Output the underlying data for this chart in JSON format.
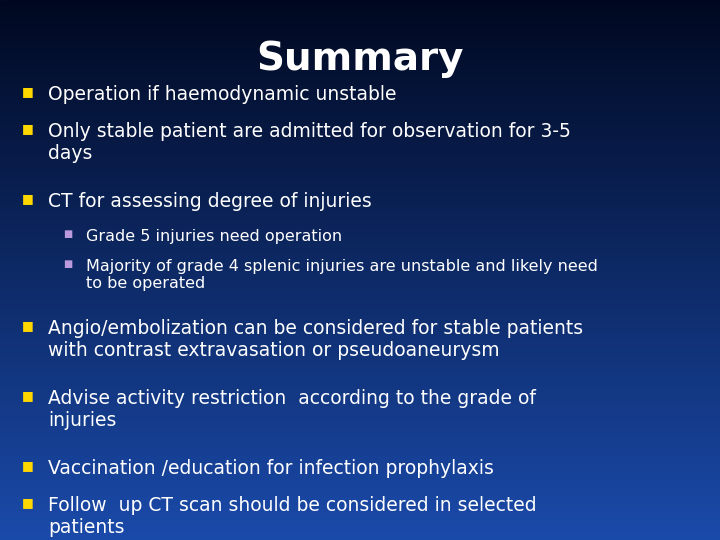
{
  "title": "Summary",
  "title_color": "#FFFFFF",
  "title_fontsize": 28,
  "background_top": "#000820",
  "background_bottom": "#1a4aaa",
  "bullet_color": "#FFD700",
  "sub_bullet_color": "#BB99DD",
  "text_color": "#FFFFFF",
  "main_fontsize": 13.5,
  "sub_fontsize": 11.5,
  "bullets": [
    "Operation if haemodynamic unstable",
    "Only stable patient are admitted for observation for 3-5\ndays",
    "CT for assessing degree of injuries"
  ],
  "sub_bullets": [
    "Grade 5 injuries need operation",
    "Majority of grade 4 splenic injuries are unstable and likely need\nto be operated"
  ],
  "extra_bullets": [
    "Angio/embolization can be considered for stable patients\nwith contrast extravasation or pseudoaneurysm",
    "Advise activity restriction  according to the grade of\ninjuries",
    "Vaccination /education for infection prophylaxis",
    "Follow  up CT scan should be considered in selected\npatients"
  ]
}
